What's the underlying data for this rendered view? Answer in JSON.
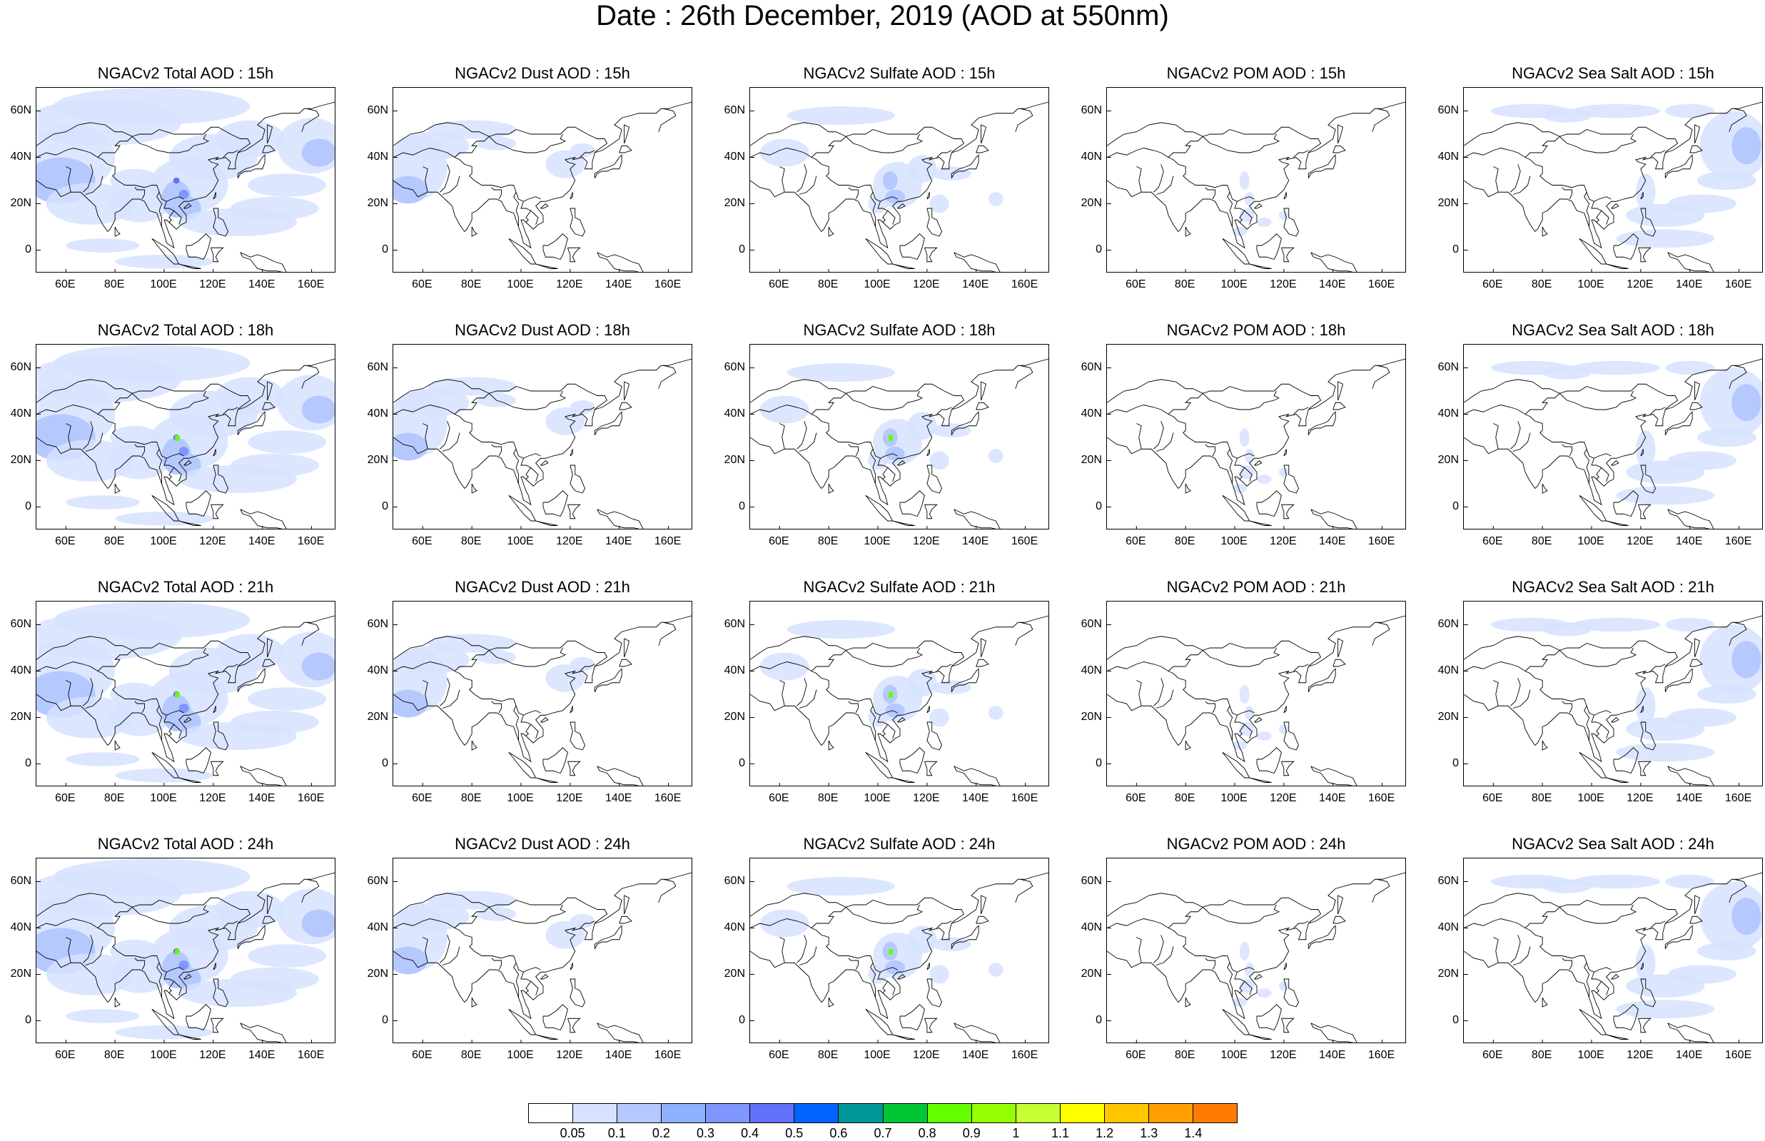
{
  "title": "Date : 26th December, 2019 (AOD at 550nm)",
  "map": {
    "lon_range": [
      48,
      170
    ],
    "lat_range": [
      -10,
      70
    ],
    "x_ticks": [
      "60E",
      "80E",
      "100E",
      "120E",
      "140E",
      "160E"
    ],
    "x_tick_values": [
      60,
      80,
      100,
      120,
      140,
      160
    ],
    "y_ticks": [
      "60N",
      "40N",
      "20N",
      "0"
    ],
    "y_tick_values": [
      60,
      40,
      20,
      0
    ]
  },
  "panels": [
    {
      "title": "NGACv2 Total AOD : 15h",
      "species": "total"
    },
    {
      "title": "NGACv2 Dust AOD : 15h",
      "species": "dust"
    },
    {
      "title": "NGACv2 Sulfate AOD : 15h",
      "species": "sulfate"
    },
    {
      "title": "NGACv2 POM AOD : 15h",
      "species": "pom"
    },
    {
      "title": "NGACv2 Sea Salt AOD : 15h",
      "species": "seasalt"
    },
    {
      "title": "NGACv2 Total AOD : 18h",
      "species": "total"
    },
    {
      "title": "NGACv2 Dust AOD : 18h",
      "species": "dust"
    },
    {
      "title": "NGACv2 Sulfate AOD : 18h",
      "species": "sulfate"
    },
    {
      "title": "NGACv2 POM AOD : 18h",
      "species": "pom"
    },
    {
      "title": "NGACv2 Sea Salt AOD : 18h",
      "species": "seasalt"
    },
    {
      "title": "NGACv2 Total AOD : 21h",
      "species": "total"
    },
    {
      "title": "NGACv2 Dust AOD : 21h",
      "species": "dust"
    },
    {
      "title": "NGACv2 Sulfate AOD : 21h",
      "species": "sulfate"
    },
    {
      "title": "NGACv2 POM AOD : 21h",
      "species": "pom"
    },
    {
      "title": "NGACv2 Sea Salt AOD : 21h",
      "species": "seasalt"
    },
    {
      "title": "NGACv2 Total AOD : 24h",
      "species": "total"
    },
    {
      "title": "NGACv2 Dust AOD : 24h",
      "species": "dust"
    },
    {
      "title": "NGACv2 Sulfate AOD : 24h",
      "species": "sulfate"
    },
    {
      "title": "NGACv2 POM AOD : 24h",
      "species": "pom"
    },
    {
      "title": "NGACv2 Sea Salt  AOD : 24h",
      "species": "seasalt"
    }
  ],
  "colorbar": {
    "labels": [
      "0.05",
      "0.1",
      "0.2",
      "0.3",
      "0.4",
      "0.5",
      "0.6",
      "0.7",
      "0.8",
      "0.9",
      "1",
      "1.1",
      "1.2",
      "1.3",
      "1.4"
    ],
    "colors": [
      "#ffffff",
      "#d6e2ff",
      "#b5c9ff",
      "#8eb2ff",
      "#7f96ff",
      "#6370f8",
      "#0063ff",
      "#009696",
      "#00c633",
      "#63ff00",
      "#96ff00",
      "#c6ff33",
      "#ffff00",
      "#ffc600",
      "#ffa000",
      "#ff7c00",
      "#ff1900"
    ]
  }
}
